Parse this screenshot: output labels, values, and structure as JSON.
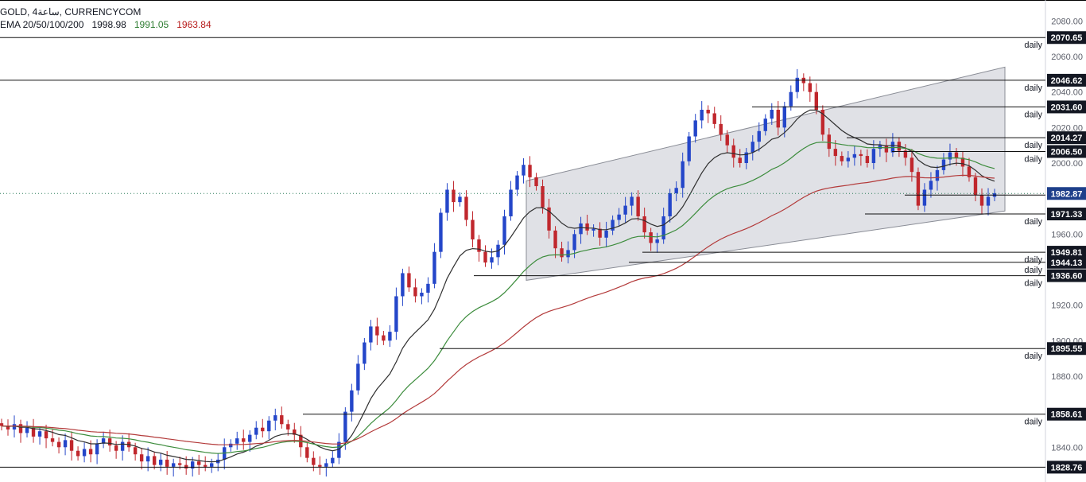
{
  "header": {
    "symbol_line": "GOLD, 4ساعة, CURRENCYCOM",
    "ema_label": "EMA 20/50/100/200",
    "ema_20": "1998.98",
    "ema_50": "1991.05",
    "ema_100": "1963.84"
  },
  "colors": {
    "bull": "#2446c9",
    "bear": "#c0272d",
    "ema_20": "#2f2f2f",
    "ema_50": "#3c8c3c",
    "ema_100": "#b33a3a",
    "channel_fill": "#d6d7de",
    "level_badge_bg": "#131722",
    "last_price_bg": "#1e3f8a"
  },
  "chart_data": {
    "type": "candlestick",
    "instrument": "GOLD",
    "timeframe": "4ساعة",
    "source": "CURRENCYCOM",
    "y_axis_ticks": [
      "2080.00",
      "2060.00",
      "2040.00",
      "2020.00",
      "2000.00",
      "1960.00",
      "1920.00",
      "1900.00",
      "1880.00",
      "1840.00"
    ],
    "ylim": [
      1828,
      2089
    ],
    "last_price": "1982.87",
    "levels": [
      {
        "value": "2070.65",
        "label": "daily"
      },
      {
        "value": "2046.62",
        "label": "daily"
      },
      {
        "value": "2031.60",
        "label": "daily"
      },
      {
        "value": "2014.27",
        "label": "daily"
      },
      {
        "value": "2006.50",
        "label": "daily"
      },
      {
        "value": "1971.33",
        "label": "daily"
      },
      {
        "value": "1949.81",
        "label": "daily"
      },
      {
        "value": "1944.13",
        "label": "daily"
      },
      {
        "value": "1936.60",
        "label": "daily"
      },
      {
        "value": "1895.55",
        "label": "daily"
      },
      {
        "value": "1858.61",
        "label": "daily"
      },
      {
        "value": "1828.76",
        "label": ""
      }
    ],
    "channel": {
      "upper": [
        [
          0,
          1990
        ],
        [
          1,
          2054
        ]
      ],
      "lower": [
        [
          0,
          1934
        ],
        [
          1,
          1973
        ]
      ]
    },
    "closes": [
      1852,
      1850,
      1853,
      1848,
      1851,
      1846,
      1849,
      1845,
      1843,
      1840,
      1844,
      1838,
      1835,
      1839,
      1836,
      1842,
      1845,
      1841,
      1838,
      1843,
      1840,
      1836,
      1832,
      1835,
      1830,
      1833,
      1829,
      1831,
      1830,
      1828,
      1832,
      1830,
      1829,
      1831,
      1833,
      1840,
      1842,
      1845,
      1843,
      1847,
      1851,
      1849,
      1855,
      1858,
      1853,
      1850,
      1847,
      1840,
      1834,
      1830,
      1829,
      1831,
      1834,
      1843,
      1860,
      1872,
      1887,
      1899,
      1908,
      1903,
      1900,
      1905,
      1925,
      1938,
      1930,
      1925,
      1927,
      1932,
      1950,
      1972,
      1985,
      1978,
      1981,
      1968,
      1957,
      1950,
      1944,
      1947,
      1954,
      1970,
      1985,
      1993,
      1999,
      1992,
      1987,
      1975,
      1962,
      1952,
      1947,
      1951,
      1960,
      1966,
      1962,
      1963,
      1958,
      1962,
      1968,
      1971,
      1976,
      1981,
      1970,
      1961,
      1955,
      1957,
      1970,
      1983,
      1986,
      2001,
      2015,
      2024,
      2030,
      2028,
      2022,
      2016,
      2010,
      2003,
      2000,
      2006,
      2012,
      2018,
      2025,
      2030,
      2020,
      2032,
      2040,
      2048,
      2045,
      2040,
      2030,
      2016,
      2008,
      2004,
      2001,
      2003,
      2005,
      2004,
      2000,
      2008,
      2010,
      2006,
      2012,
      2007,
      2003,
      1995,
      1976,
      1985,
      1990,
      1996,
      2002,
      2006,
      2003,
      1998,
      1992,
      1982,
      1976,
      1981,
      1983
    ]
  }
}
